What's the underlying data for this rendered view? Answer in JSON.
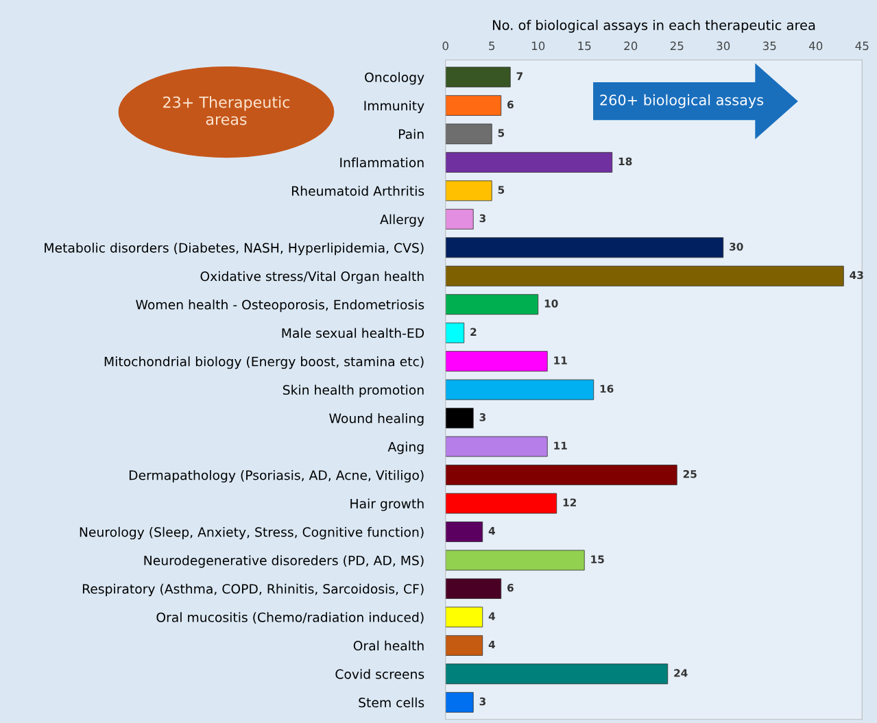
{
  "chart_data": {
    "type": "bar",
    "orientation": "horizontal",
    "xlabel": "No. of biological assays in each therapeutic area",
    "categories": [
      "Oncology",
      "Immunity",
      "Pain",
      "Inflammation",
      "Rheumatoid Arthritis",
      "Allergy",
      "Metabolic disorders (Diabetes, NASH, Hyperlipidemia, CVS)",
      "Oxidative stress/Vital Organ health",
      "Women health - Osteoporosis, Endometriosis",
      "Male sexual health-ED",
      "Mitochondrial biology (Energy boost, stamina etc)",
      "Skin health promotion",
      "Wound healing",
      "Aging",
      "Dermapathology (Psoriasis, AD, Acne, Vitiligo)",
      "Hair growth",
      "Neurology (Sleep, Anxiety, Stress, Cognitive function)",
      "Neurodegenerative disoreders (PD, AD, MS)",
      "Respiratory (Asthma, COPD, Rhinitis, Sarcoidosis, CF)",
      "Oral mucositis (Chemo/radiation induced)",
      "Oral health",
      "Covid screens",
      "Stem cells"
    ],
    "values": [
      7,
      6,
      5,
      18,
      5,
      3,
      30,
      43,
      10,
      2,
      11,
      16,
      3,
      11,
      25,
      12,
      4,
      15,
      6,
      4,
      4,
      24,
      3
    ],
    "colors": [
      "#375623",
      "#ff6a13",
      "#6e6e6e",
      "#7030a0",
      "#ffc000",
      "#e38ee0",
      "#002060",
      "#7f6000",
      "#00b050",
      "#00ffff",
      "#ff00ff",
      "#00b0f0",
      "#000000",
      "#b57ee8",
      "#800000",
      "#ff0000",
      "#5b0060",
      "#92d050",
      "#4a0025",
      "#ffff00",
      "#c55a11",
      "#00807a",
      "#0070f0"
    ],
    "xlim": [
      0,
      45
    ],
    "xticks": [
      0,
      5,
      10,
      15,
      20,
      25,
      30,
      35,
      40,
      45
    ],
    "data_labels": true,
    "grid": false,
    "annotations": [
      "23+ Therapeutic areas",
      "260+ biological assays"
    ]
  }
}
